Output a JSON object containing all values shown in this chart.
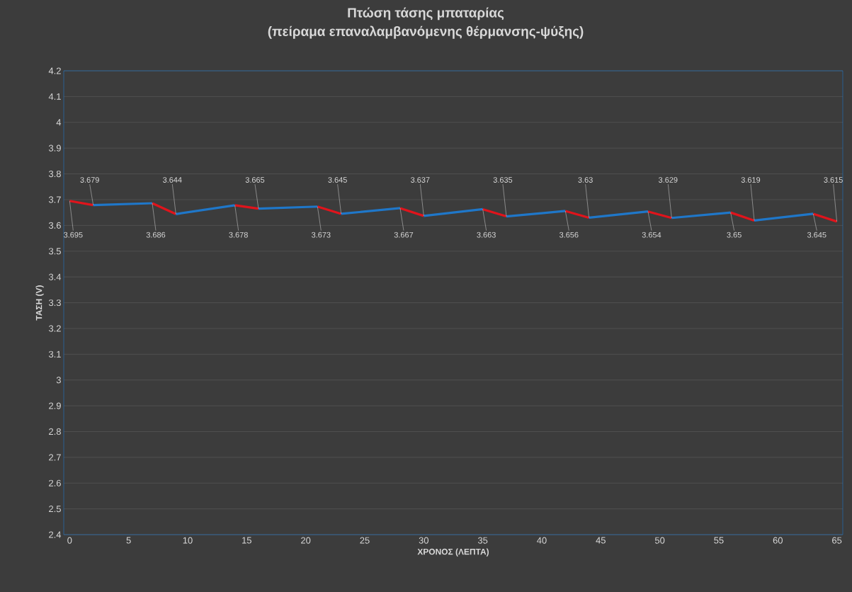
{
  "chart_data": {
    "type": "line",
    "title": "Πτώση τάσης μπαταρίας",
    "subtitle": "(πείραμα επαναλαμβανόμενης θέρμανσης-ψύξης)",
    "xlabel": "ΧΡΟΝΟΣ (ΛΕΠΤΑ)",
    "ylabel": "ΤΑΣΗ (V)",
    "series": [
      {
        "color": "#e0141c",
        "x": [
          0,
          2
        ],
        "values": [
          3.695,
          3.679
        ],
        "value_labels": [
          "3.695",
          "3.679"
        ]
      },
      {
        "color": "#1f77c9",
        "x": [
          2,
          7
        ],
        "values": [
          3.679,
          3.686
        ]
      },
      {
        "color": "#e0141c",
        "x": [
          7,
          9
        ],
        "values": [
          3.686,
          3.644
        ],
        "value_labels": [
          "3.686",
          "3.644"
        ]
      },
      {
        "color": "#1f77c9",
        "x": [
          9,
          14
        ],
        "values": [
          3.644,
          3.678
        ]
      },
      {
        "color": "#e0141c",
        "x": [
          14,
          16
        ],
        "values": [
          3.678,
          3.665
        ],
        "value_labels": [
          "3.678",
          "3.665"
        ]
      },
      {
        "color": "#1f77c9",
        "x": [
          16,
          21
        ],
        "values": [
          3.665,
          3.673
        ]
      },
      {
        "color": "#e0141c",
        "x": [
          21,
          23
        ],
        "values": [
          3.673,
          3.645
        ],
        "value_labels": [
          "3.673",
          "3.645"
        ]
      },
      {
        "color": "#1f77c9",
        "x": [
          23,
          28
        ],
        "values": [
          3.645,
          3.667
        ]
      },
      {
        "color": "#e0141c",
        "x": [
          28,
          30
        ],
        "values": [
          3.667,
          3.637
        ],
        "value_labels": [
          "3.667",
          "3.637"
        ]
      },
      {
        "color": "#1f77c9",
        "x": [
          30,
          35
        ],
        "values": [
          3.637,
          3.663
        ]
      },
      {
        "color": "#e0141c",
        "x": [
          35,
          37
        ],
        "values": [
          3.663,
          3.635
        ],
        "value_labels": [
          "3.663",
          "3.635"
        ]
      },
      {
        "color": "#1f77c9",
        "x": [
          37,
          42
        ],
        "values": [
          3.635,
          3.656
        ]
      },
      {
        "color": "#e0141c",
        "x": [
          42,
          44
        ],
        "values": [
          3.656,
          3.63
        ],
        "value_labels": [
          "3.656",
          "3.63"
        ]
      },
      {
        "color": "#1f77c9",
        "x": [
          44,
          49
        ],
        "values": [
          3.63,
          3.654
        ]
      },
      {
        "color": "#e0141c",
        "x": [
          49,
          51
        ],
        "values": [
          3.654,
          3.629
        ],
        "value_labels": [
          "3.654",
          "3.629"
        ]
      },
      {
        "color": "#1f77c9",
        "x": [
          51,
          56
        ],
        "values": [
          3.629,
          3.65
        ]
      },
      {
        "color": "#e0141c",
        "x": [
          56,
          58
        ],
        "values": [
          3.65,
          3.619
        ],
        "value_labels": [
          "3.65",
          "3.619"
        ]
      },
      {
        "color": "#1f77c9",
        "x": [
          58,
          63
        ],
        "values": [
          3.619,
          3.645
        ]
      },
      {
        "color": "#e0141c",
        "x": [
          63,
          65
        ],
        "values": [
          3.645,
          3.615
        ],
        "value_labels": [
          "3.645",
          "3.615"
        ]
      }
    ],
    "xlim": [
      -0.5,
      65.5
    ],
    "xticks": [
      0,
      5,
      10,
      15,
      20,
      25,
      30,
      35,
      40,
      45,
      50,
      55,
      60,
      65
    ],
    "ylim": [
      2.4,
      4.2
    ],
    "yticks": [
      2.4,
      2.5,
      2.6,
      2.7,
      2.8,
      2.9,
      3,
      3.1,
      3.2,
      3.3,
      3.4,
      3.5,
      3.6,
      3.7,
      3.8,
      3.9,
      4,
      4.1,
      4.2
    ],
    "grid": "y"
  }
}
